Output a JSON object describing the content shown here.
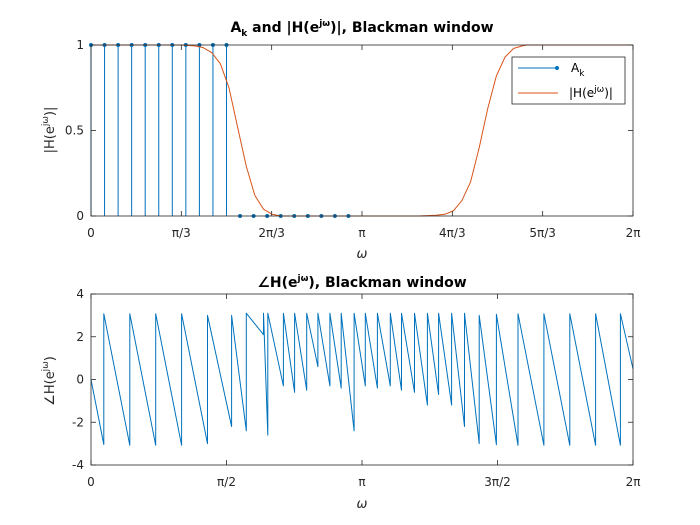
{
  "chart_data": [
    {
      "type": "line",
      "title": {
        "pre": "A",
        "sub": "k",
        "mid": " and |H(e",
        "sup": "jω",
        "post": ")|, Blackman window"
      },
      "xlabel": "ω",
      "ylabel": {
        "pre": "|H(e",
        "sup": "jω",
        "post": ")|"
      },
      "xlim": [
        0,
        6.2832
      ],
      "ylim": [
        0,
        1
      ],
      "xticks": [
        {
          "value": 0,
          "label": "0"
        },
        {
          "value": 1.0472,
          "label": "π/3"
        },
        {
          "value": 2.0944,
          "label": "2π/3"
        },
        {
          "value": 3.1416,
          "label": "π"
        },
        {
          "value": 4.1888,
          "label": "4π/3"
        },
        {
          "value": 5.236,
          "label": "5π/3"
        },
        {
          "value": 6.2832,
          "label": "2π"
        }
      ],
      "yticks": [
        {
          "value": 0,
          "label": "0"
        },
        {
          "value": 0.5,
          "label": "0.5"
        },
        {
          "value": 1,
          "label": "1"
        }
      ],
      "grid": false,
      "legend_position": "top-right",
      "series": [
        {
          "name": "A_k",
          "name_parts": {
            "pre": "A",
            "sub": "k"
          },
          "kind": "stem",
          "color": "#0072BD",
          "x": [
            0,
            0.1571,
            0.3142,
            0.4712,
            0.6283,
            0.7854,
            0.9425,
            1.0996,
            1.2566,
            1.4137,
            1.5708,
            1.7279,
            1.885,
            2.042,
            2.1991,
            2.3562,
            2.5133,
            2.6704,
            2.8274,
            2.9845
          ],
          "values": [
            1,
            1,
            1,
            1,
            1,
            1,
            1,
            1,
            1,
            1,
            1,
            0,
            0,
            0,
            0,
            0,
            0,
            0,
            0,
            0
          ]
        },
        {
          "name": "|H(e^jω)|",
          "name_parts": {
            "pre": "|H(e",
            "sup": "jω",
            "post": ")|"
          },
          "kind": "line",
          "color": "#D95319",
          "x": [
            0,
            1.05,
            1.2,
            1.3,
            1.4,
            1.5,
            1.6,
            1.7,
            1.8,
            1.9,
            2.0,
            2.1,
            2.2,
            3.0,
            3.8,
            4.0,
            4.1,
            4.2,
            4.3,
            4.4,
            4.5,
            4.6,
            4.7,
            4.8,
            4.9,
            5.0,
            5.05,
            5.2,
            6.2832
          ],
          "values": [
            1,
            1,
            0.995,
            0.985,
            0.955,
            0.89,
            0.75,
            0.52,
            0.29,
            0.12,
            0.04,
            0.01,
            0,
            0,
            0,
            0.004,
            0.01,
            0.03,
            0.09,
            0.2,
            0.4,
            0.63,
            0.82,
            0.93,
            0.98,
            0.995,
            1,
            1,
            1
          ]
        }
      ]
    },
    {
      "type": "line",
      "title": {
        "pre": "∠H(e",
        "sup": "jω",
        "post": "), Blackman window"
      },
      "xlabel": "ω",
      "ylabel": {
        "pre": "∠H(e",
        "sup": "jω",
        "post": ")"
      },
      "xlim": [
        0,
        6.2832
      ],
      "ylim": [
        -4,
        4
      ],
      "xticks": [
        {
          "value": 0,
          "label": "0"
        },
        {
          "value": 1.5708,
          "label": "π/2"
        },
        {
          "value": 3.1416,
          "label": "π"
        },
        {
          "value": 4.7124,
          "label": "3π/2"
        },
        {
          "value": 6.2832,
          "label": "2π"
        }
      ],
      "yticks": [
        {
          "value": -4,
          "label": "-4"
        },
        {
          "value": -2,
          "label": "-2"
        },
        {
          "value": 0,
          "label": "0"
        },
        {
          "value": 2,
          "label": "2"
        },
        {
          "value": 4,
          "label": "4"
        }
      ],
      "grid": false,
      "series": [
        {
          "name": "",
          "color": "#0072BD",
          "x": [
            0,
            0.148,
            0.148,
            0.45,
            0.45,
            0.75,
            0.75,
            1.05,
            1.05,
            1.35,
            1.35,
            1.63,
            1.63,
            1.8,
            1.8,
            2.0,
            2.0,
            2.05,
            2.05,
            2.23,
            2.23,
            2.36,
            2.36,
            2.5,
            2.5,
            2.63,
            2.63,
            2.77,
            2.77,
            2.9,
            2.9,
            3.05,
            3.05,
            3.18,
            3.18,
            3.32,
            3.32,
            3.47,
            3.47,
            3.6,
            3.6,
            3.75,
            3.75,
            3.9,
            3.9,
            4.03,
            4.03,
            4.18,
            4.18,
            4.33,
            4.33,
            4.5,
            4.5,
            4.7,
            4.7,
            4.95,
            4.95,
            5.25,
            5.25,
            5.55,
            5.55,
            5.85,
            5.85,
            6.137,
            6.137,
            6.2832
          ],
          "values": [
            0,
            -3.04,
            3.08,
            -3.08,
            3.08,
            -3.08,
            3.08,
            -3.08,
            3.08,
            -3.0,
            3.0,
            -2.2,
            3.0,
            -2.4,
            3.1,
            2.1,
            3.1,
            -2.6,
            3.1,
            -0.3,
            3.1,
            -0.6,
            3.1,
            -0.5,
            3.1,
            0.6,
            3.1,
            -0.3,
            3.1,
            -0.4,
            3.1,
            -2.4,
            3.1,
            -0.3,
            3.1,
            -0.4,
            3.1,
            -0.3,
            3.1,
            -0.5,
            3.1,
            -0.6,
            3.1,
            -1.2,
            3.1,
            -0.7,
            3.1,
            -1.2,
            3.1,
            -2.2,
            3.1,
            -3.0,
            3.0,
            -3.05,
            3.05,
            -3.08,
            3.08,
            -3.08,
            3.08,
            -3.08,
            3.08,
            -3.08,
            3.08,
            -3.08,
            3.08,
            0.5
          ]
        }
      ]
    }
  ]
}
